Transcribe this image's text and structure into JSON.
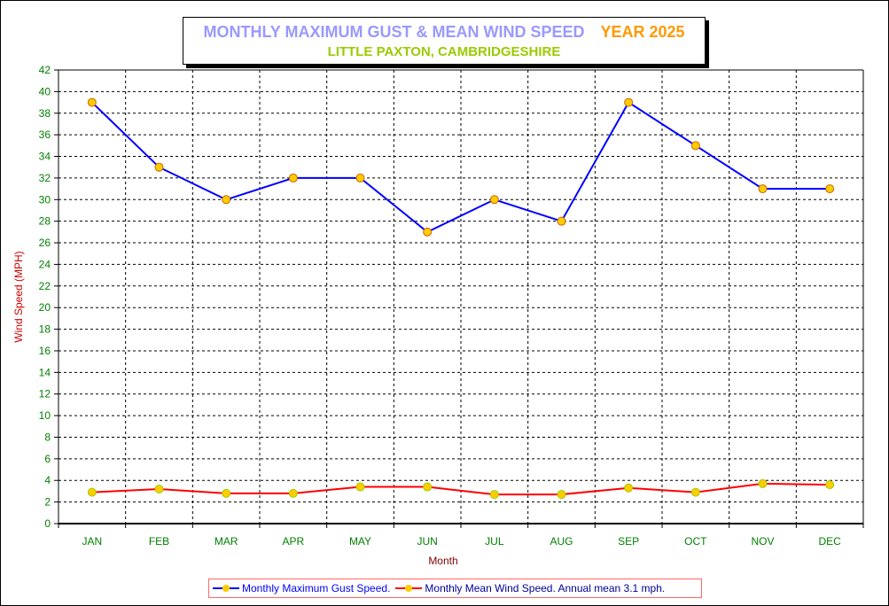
{
  "chart_data": {
    "type": "line",
    "title": "MONTHLY MAXIMUM GUST & MEAN WIND SPEED",
    "year_label": "YEAR 2025",
    "subtitle": "LITTLE PAXTON, CAMBRIDGESHIRE",
    "xlabel": "Month",
    "ylabel": "Wind Speed (MPH)",
    "ylim": [
      0,
      42
    ],
    "ytick_step": 2,
    "grid": true,
    "legend_position": "bottom",
    "categories": [
      "JAN",
      "FEB",
      "MAR",
      "APR",
      "MAY",
      "JUN",
      "JUL",
      "AUG",
      "SEP",
      "OCT",
      "NOV",
      "DEC"
    ],
    "series": [
      {
        "name": "Monthly Maximum Gust Speed.",
        "color": "#0000ff",
        "values": [
          39,
          33,
          30,
          32,
          32,
          27,
          30,
          28,
          39,
          35,
          31,
          31
        ]
      },
      {
        "name": "Monthly Mean Wind Speed. Annual mean 3.1 mph.",
        "color": "#ff0000",
        "values": [
          2.9,
          3.2,
          2.8,
          2.8,
          3.4,
          3.4,
          2.7,
          2.7,
          3.3,
          2.9,
          3.7,
          3.6
        ]
      }
    ]
  }
}
